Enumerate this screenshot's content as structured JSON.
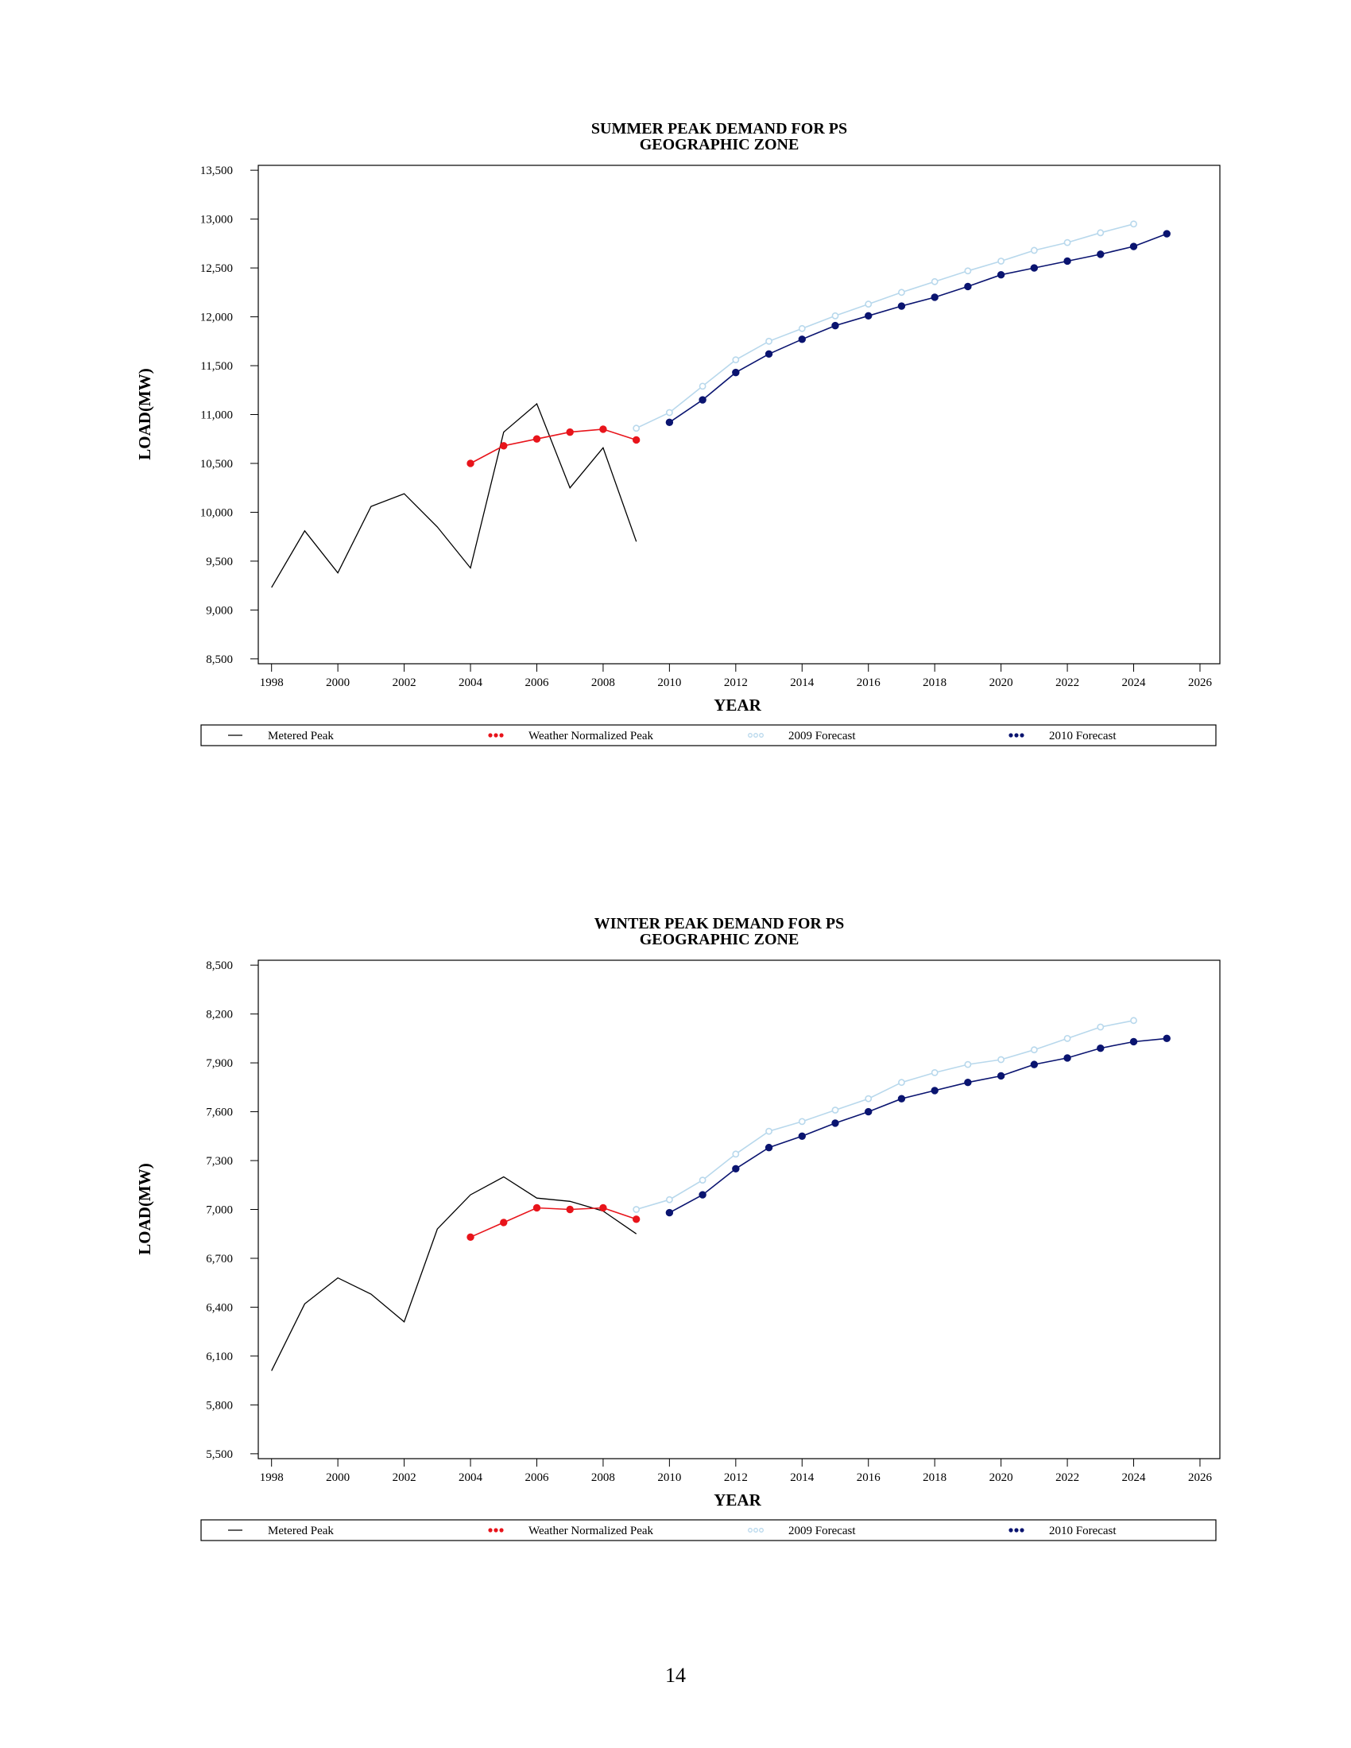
{
  "page": {
    "number": "14"
  },
  "chart_data": [
    {
      "type": "line",
      "title": "SUMMER PEAK DEMAND FOR PS",
      "subtitle": "GEOGRAPHIC ZONE",
      "xlabel": "YEAR",
      "ylabel": "LOAD(MW)",
      "xlim": [
        1997.6,
        2026.6
      ],
      "ylim": [
        8450,
        13550
      ],
      "xticks": [
        1998,
        2000,
        2002,
        2004,
        2006,
        2008,
        2010,
        2012,
        2014,
        2016,
        2018,
        2020,
        2022,
        2024,
        2026
      ],
      "yticks": [
        8500,
        9000,
        9500,
        10000,
        10500,
        11000,
        11500,
        12000,
        12500,
        13000,
        13500
      ],
      "ytick_labels": [
        "8,500",
        "9,000",
        "9,500",
        "10,000",
        "10,500",
        "11,000",
        "11,500",
        "12,000",
        "12,500",
        "13,000",
        "13,500"
      ],
      "xtick_labels": [
        "1998",
        "2000",
        "2002",
        "2004",
        "2006",
        "2008",
        "2010",
        "2012",
        "2014",
        "2016",
        "2018",
        "2020",
        "2022",
        "2024",
        "2026"
      ],
      "legend_position": "bottom",
      "grid": false,
      "series": [
        {
          "name": "Metered Peak",
          "style": "line",
          "color": "#000000",
          "x": [
            1998,
            1999,
            2000,
            2001,
            2002,
            2003,
            2004,
            2005,
            2006,
            2007,
            2008,
            2009
          ],
          "y": [
            9230,
            9810,
            9380,
            10060,
            10190,
            9850,
            9430,
            10820,
            11110,
            10250,
            10660,
            9700
          ]
        },
        {
          "name": "Weather Normalized Peak",
          "style": "line-markers",
          "color": "#e8141b",
          "x": [
            2004,
            2005,
            2006,
            2007,
            2008,
            2009
          ],
          "y": [
            10500,
            10680,
            10750,
            10820,
            10850,
            10740
          ]
        },
        {
          "name": "2009 Forecast",
          "style": "line-open-markers",
          "color": "#b8d8ec",
          "x": [
            2009,
            2010,
            2011,
            2012,
            2013,
            2014,
            2015,
            2016,
            2017,
            2018,
            2019,
            2020,
            2021,
            2022,
            2023,
            2024
          ],
          "y": [
            10860,
            11020,
            11290,
            11560,
            11750,
            11880,
            12010,
            12130,
            12250,
            12360,
            12470,
            12570,
            12680,
            12760,
            12860,
            12950
          ]
        },
        {
          "name": "2010 Forecast",
          "style": "line-markers",
          "color": "#0a1470",
          "x": [
            2010,
            2011,
            2012,
            2013,
            2014,
            2015,
            2016,
            2017,
            2018,
            2019,
            2020,
            2021,
            2022,
            2023,
            2024,
            2025
          ],
          "y": [
            10920,
            11150,
            11430,
            11620,
            11770,
            11910,
            12010,
            12110,
            12200,
            12310,
            12430,
            12500,
            12570,
            12640,
            12720,
            12850
          ]
        }
      ]
    },
    {
      "type": "line",
      "title": "WINTER PEAK DEMAND FOR PS",
      "subtitle": "GEOGRAPHIC ZONE",
      "xlabel": "YEAR",
      "ylabel": "LOAD(MW)",
      "xlim": [
        1997.6,
        2026.6
      ],
      "ylim": [
        5470,
        8530
      ],
      "xticks": [
        1998,
        2000,
        2002,
        2004,
        2006,
        2008,
        2010,
        2012,
        2014,
        2016,
        2018,
        2020,
        2022,
        2024,
        2026
      ],
      "yticks": [
        5500,
        5800,
        6100,
        6400,
        6700,
        7000,
        7300,
        7600,
        7900,
        8200,
        8500
      ],
      "ytick_labels": [
        "5,500",
        "5,800",
        "6,100",
        "6,400",
        "6,700",
        "7,000",
        "7,300",
        "7,600",
        "7,900",
        "8,200",
        "8,500"
      ],
      "xtick_labels": [
        "1998",
        "2000",
        "2002",
        "2004",
        "2006",
        "2008",
        "2010",
        "2012",
        "2014",
        "2016",
        "2018",
        "2020",
        "2022",
        "2024",
        "2026"
      ],
      "legend_position": "bottom",
      "grid": false,
      "series": [
        {
          "name": "Metered Peak",
          "style": "line",
          "color": "#000000",
          "x": [
            1998,
            1999,
            2000,
            2001,
            2002,
            2003,
            2004,
            2005,
            2006,
            2007,
            2008,
            2009
          ],
          "y": [
            6010,
            6420,
            6580,
            6480,
            6310,
            6880,
            7090,
            7200,
            7070,
            7050,
            6990,
            6850
          ]
        },
        {
          "name": "Weather Normalized Peak",
          "style": "line-markers",
          "color": "#e8141b",
          "x": [
            2004,
            2005,
            2006,
            2007,
            2008,
            2009
          ],
          "y": [
            6830,
            6920,
            7010,
            7000,
            7010,
            6940
          ]
        },
        {
          "name": "2009 Forecast",
          "style": "line-open-markers",
          "color": "#b8d8ec",
          "x": [
            2009,
            2010,
            2011,
            2012,
            2013,
            2014,
            2015,
            2016,
            2017,
            2018,
            2019,
            2020,
            2021,
            2022,
            2023,
            2024
          ],
          "y": [
            7000,
            7060,
            7180,
            7340,
            7480,
            7540,
            7610,
            7680,
            7780,
            7840,
            7890,
            7920,
            7980,
            8050,
            8120,
            8160
          ]
        },
        {
          "name": "2010 Forecast",
          "style": "line-markers",
          "color": "#0a1470",
          "x": [
            2010,
            2011,
            2012,
            2013,
            2014,
            2015,
            2016,
            2017,
            2018,
            2019,
            2020,
            2021,
            2022,
            2023,
            2024,
            2025
          ],
          "y": [
            6980,
            7090,
            7250,
            7380,
            7450,
            7530,
            7600,
            7680,
            7730,
            7780,
            7820,
            7890,
            7930,
            7990,
            8030,
            8050
          ]
        }
      ]
    }
  ]
}
